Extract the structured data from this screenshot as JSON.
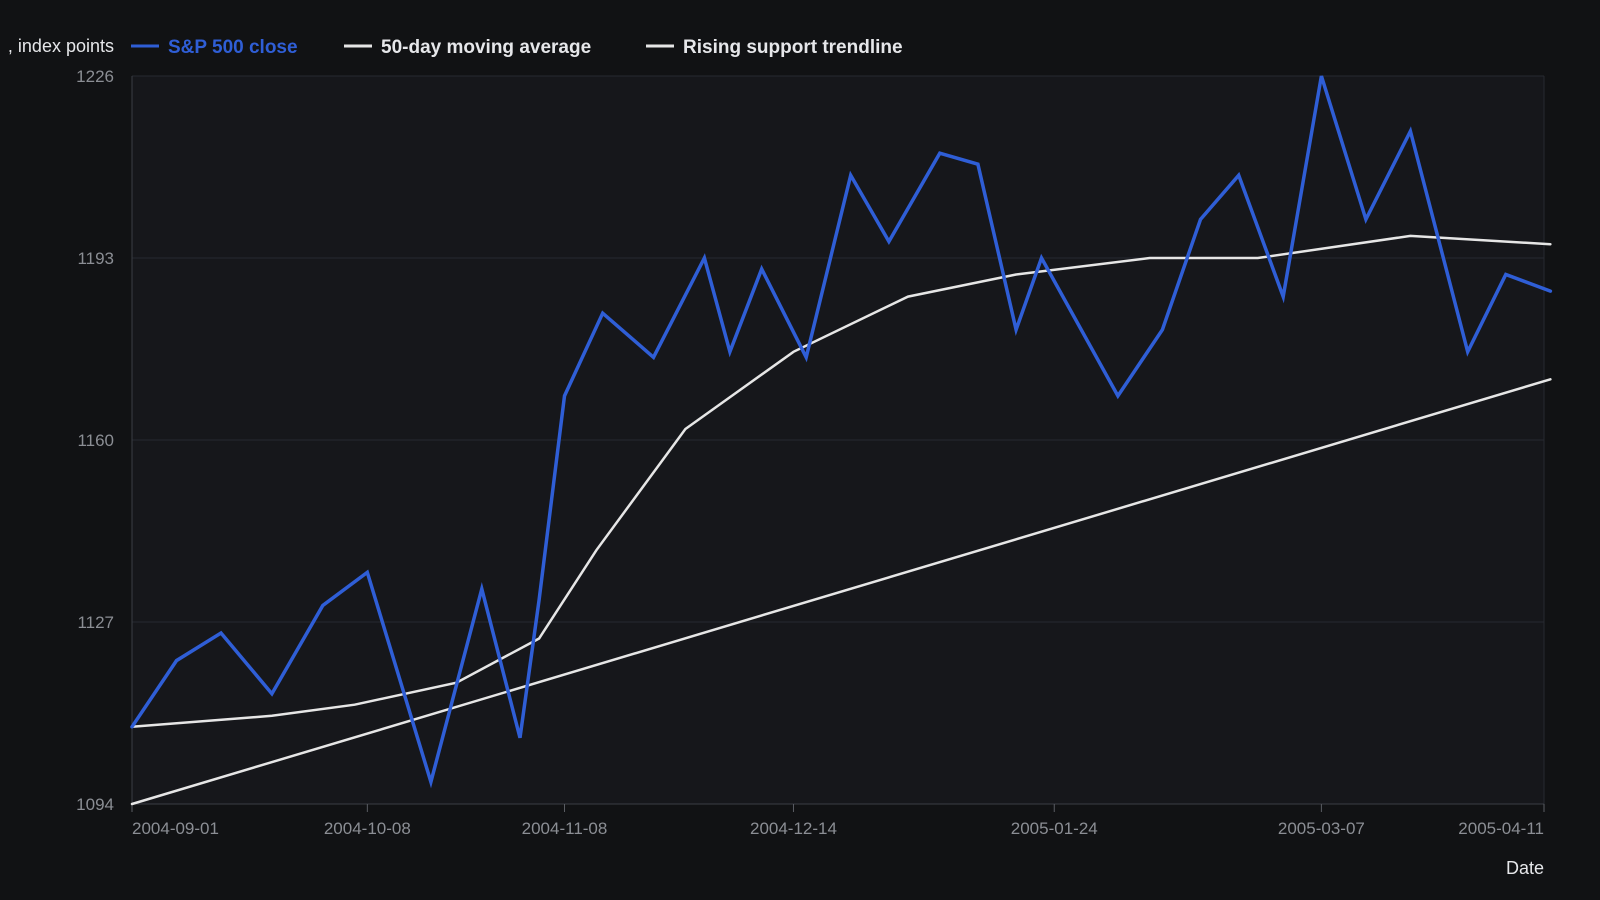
{
  "chart_data": {
    "type": "line",
    "title": "",
    "xlabel": "Date",
    "ylabel": ", index points",
    "ylim": [
      1094,
      1226
    ],
    "yticks": [
      1094,
      1127,
      1160,
      1193,
      1226
    ],
    "xticks": [
      "2004-09-01",
      "2004-10-08",
      "2004-11-08",
      "2004-12-14",
      "2005-01-24",
      "2005-03-07",
      "2005-04-11"
    ],
    "xlim": [
      "2004-09-01",
      "2005-04-11"
    ],
    "grid": "horizontal",
    "legend": "top-left",
    "colors": {
      "background": "#111214",
      "plot": "#16171b",
      "grid": "#272a30",
      "close": "#2f5ed6",
      "ma": "#e6e6e6",
      "trend": "#e6e6e6",
      "legend_text": "#e6e7ea"
    },
    "series": [
      {
        "name": "S&P 500 close",
        "color": "#2f5ed6",
        "points": [
          [
            "2004-09-01",
            1108
          ],
          [
            "2004-09-08",
            1120
          ],
          [
            "2004-09-15",
            1125
          ],
          [
            "2004-09-23",
            1114
          ],
          [
            "2004-10-01",
            1130
          ],
          [
            "2004-10-08",
            1136
          ],
          [
            "2004-10-18",
            1098
          ],
          [
            "2004-10-26",
            1133
          ],
          [
            "2004-11-01",
            1106
          ],
          [
            "2004-11-04",
            1131
          ],
          [
            "2004-11-08",
            1168
          ],
          [
            "2004-11-14",
            1183
          ],
          [
            "2004-11-22",
            1175
          ],
          [
            "2004-11-30",
            1193
          ],
          [
            "2004-12-04",
            1176
          ],
          [
            "2004-12-09",
            1191
          ],
          [
            "2004-12-16",
            1175
          ],
          [
            "2004-12-23",
            1208
          ],
          [
            "2004-12-29",
            1196
          ],
          [
            "2005-01-06",
            1212
          ],
          [
            "2005-01-12",
            1210
          ],
          [
            "2005-01-18",
            1180
          ],
          [
            "2005-01-22",
            1193
          ],
          [
            "2005-02-03",
            1168
          ],
          [
            "2005-02-10",
            1180
          ],
          [
            "2005-02-16",
            1200
          ],
          [
            "2005-02-22",
            1208
          ],
          [
            "2005-03-01",
            1186
          ],
          [
            "2005-03-07",
            1226
          ],
          [
            "2005-03-14",
            1200
          ],
          [
            "2005-03-21",
            1216
          ],
          [
            "2005-03-30",
            1176
          ],
          [
            "2005-04-05",
            1190
          ],
          [
            "2005-04-12",
            1187
          ]
        ]
      },
      {
        "name": "50-day moving average",
        "color": "#e6e6e6",
        "points": [
          [
            "2004-09-01",
            1108
          ],
          [
            "2004-09-23",
            1110
          ],
          [
            "2004-10-06",
            1112
          ],
          [
            "2004-10-22",
            1116
          ],
          [
            "2004-11-04",
            1124
          ],
          [
            "2004-11-13",
            1140
          ],
          [
            "2004-11-27",
            1162
          ],
          [
            "2004-12-14",
            1176
          ],
          [
            "2005-01-01",
            1186
          ],
          [
            "2005-01-18",
            1190
          ],
          [
            "2005-02-08",
            1193
          ],
          [
            "2005-02-25",
            1193
          ],
          [
            "2005-03-21",
            1197
          ],
          [
            "2005-04-12",
            1195.5
          ]
        ]
      },
      {
        "name": "Rising support trendline",
        "color": "#e6e6e6",
        "points": [
          [
            "2004-09-01",
            1094
          ],
          [
            "2005-04-12",
            1171
          ]
        ]
      }
    ]
  }
}
